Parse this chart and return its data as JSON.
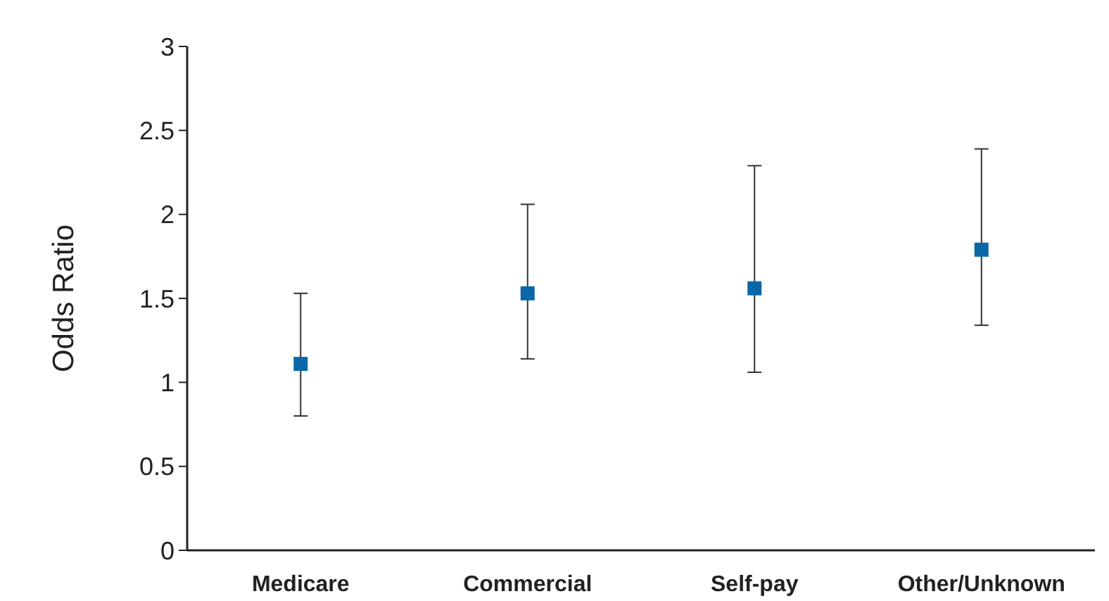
{
  "chart_data": {
    "type": "scatter",
    "ylabel": "Odds Ratio",
    "categories": [
      "Medicare",
      "Commercial",
      "Self-pay",
      "Other/Unknown"
    ],
    "values": [
      1.11,
      1.53,
      1.56,
      1.79
    ],
    "errors": [
      [
        0.8,
        1.53
      ],
      [
        1.14,
        2.06
      ],
      [
        1.06,
        2.29
      ],
      [
        1.34,
        2.39
      ]
    ],
    "color": "#0a68a8",
    "marker": "square",
    "ylim": [
      0,
      3
    ],
    "yticks": [
      0,
      0.5,
      1,
      1.5,
      2,
      2.5,
      3
    ],
    "grid": false
  }
}
